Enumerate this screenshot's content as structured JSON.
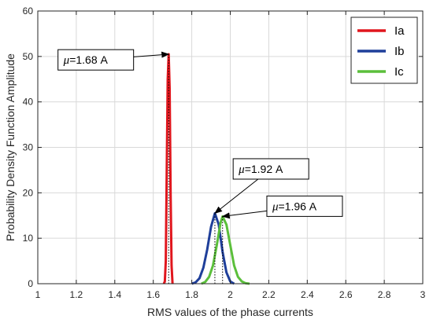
{
  "chart_data": {
    "type": "line",
    "title": "",
    "xlabel": "RMS values of the phase currents",
    "ylabel": "Probability Density Function Amplitude",
    "xlim": [
      1,
      3
    ],
    "ylim": [
      0,
      60
    ],
    "xticks": [
      1,
      1.2,
      1.4,
      1.6,
      1.8,
      2,
      2.2,
      2.4,
      2.6,
      2.8,
      3
    ],
    "xtick_labels": [
      "1",
      "1.2",
      "1.4",
      "1.6",
      "1.8",
      "2",
      "2.2",
      "2.4",
      "2.6",
      "2.8",
      "3"
    ],
    "yticks": [
      0,
      10,
      20,
      30,
      40,
      50,
      60
    ],
    "ytick_labels": [
      "0",
      "10",
      "20",
      "30",
      "40",
      "50",
      "60"
    ],
    "grid": true,
    "legend_position": "top-right",
    "series": [
      {
        "name": "Ia",
        "color": "#e0161d",
        "x": [
          1.655,
          1.66,
          1.665,
          1.67,
          1.675,
          1.68,
          1.685,
          1.69,
          1.695,
          1.7
        ],
        "y": [
          0,
          0.5,
          5,
          25,
          45,
          50.5,
          43,
          20,
          4,
          0
        ]
      },
      {
        "name": "Ib",
        "color": "#1f3f9a",
        "x": [
          1.8,
          1.82,
          1.84,
          1.86,
          1.88,
          1.9,
          1.92,
          1.94,
          1.96,
          1.98,
          2.0,
          2.02
        ],
        "y": [
          0,
          0.3,
          1.2,
          3.5,
          7.5,
          12.5,
          15.5,
          13,
          7,
          2.5,
          0.5,
          0
        ]
      },
      {
        "name": "Ic",
        "color": "#5bbf3b",
        "x": [
          1.85,
          1.87,
          1.89,
          1.91,
          1.93,
          1.95,
          1.96,
          1.98,
          2.0,
          2.02,
          2.04,
          2.06,
          2.08,
          2.1
        ],
        "y": [
          0,
          0.4,
          1.5,
          4,
          8.5,
          13.5,
          14.8,
          13,
          8.5,
          4,
          1.5,
          0.5,
          0.1,
          0
        ]
      }
    ],
    "means": [
      {
        "series": "Ia",
        "x": 1.68,
        "peak": 50.5
      },
      {
        "series": "Ib",
        "x": 1.92,
        "peak": 15.5
      },
      {
        "series": "Ic",
        "x": 1.96,
        "peak": 14.8
      }
    ],
    "annotations": [
      {
        "symbol": "μ",
        "text": "=1.68 A",
        "target_x": 1.68,
        "target_y": 50.5,
        "box_x": 1.105,
        "box_y": 51.5
      },
      {
        "symbol": "μ",
        "text": "=1.92 A",
        "target_x": 1.92,
        "target_y": 15.5,
        "box_x": 2.015,
        "box_y": 27.5
      },
      {
        "symbol": "μ",
        "text": "=1.96 A",
        "target_x": 1.96,
        "target_y": 14.8,
        "box_x": 2.19,
        "box_y": 19.3
      }
    ]
  }
}
